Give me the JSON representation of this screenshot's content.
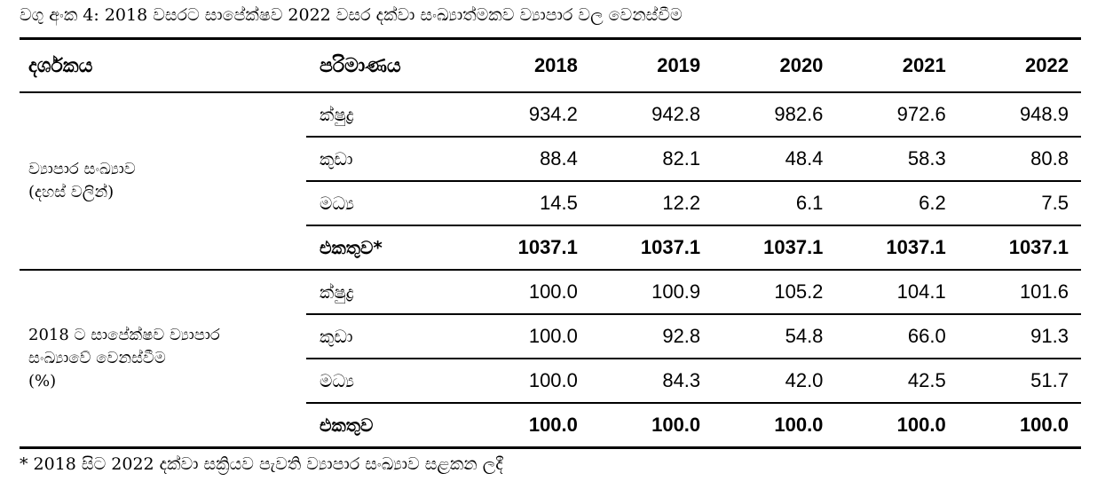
{
  "caption": "වගු අංක 4: 2018 වසරට සාපේක්ෂව 2022 වසර දක්වා සංඛ්‍යාත්මකව ව්‍යාපාර වල වෙනස්වීම",
  "table": {
    "headers": {
      "indicator": "දර්ශකය",
      "category": "පරිමාණය",
      "years": [
        "2018",
        "2019",
        "2020",
        "2021",
        "2022"
      ]
    },
    "groups": [
      {
        "label_lines": [
          "ව්‍යාපාර සංඛ්‍යාව",
          "(දහස් වලින්)"
        ],
        "rows": [
          {
            "category": "ක්ෂුද්‍ර",
            "values": [
              "934.2",
              "942.8",
              "982.6",
              "972.6",
              "948.9"
            ]
          },
          {
            "category": "කුඩා",
            "values": [
              "88.4",
              "82.1",
              "48.4",
              "58.3",
              "80.8"
            ]
          },
          {
            "category": "මධ්‍ය",
            "values": [
              "14.5",
              "12.2",
              "6.1",
              "6.2",
              "7.5"
            ]
          },
          {
            "category": "එකතුව*",
            "values": [
              "1037.1",
              "1037.1",
              "1037.1",
              "1037.1",
              "1037.1"
            ]
          }
        ]
      },
      {
        "label_lines": [
          "2018 ට සාපේක්ෂව ව්‍යාපාර",
          "සංඛ්‍යාවේ වෙනස්වීම",
          "(%)"
        ],
        "rows": [
          {
            "category": "ක්ෂුද්‍ර",
            "values": [
              "100.0",
              "100.9",
              "105.2",
              "104.1",
              "101.6"
            ]
          },
          {
            "category": "කුඩා",
            "values": [
              "100.0",
              "92.8",
              "54.8",
              "66.0",
              "91.3"
            ]
          },
          {
            "category": "මධ්‍ය",
            "values": [
              "100.0",
              "84.3",
              "42.0",
              "42.5",
              "51.7"
            ]
          },
          {
            "category": "එකතුව",
            "values": [
              "100.0",
              "100.0",
              "100.0",
              "100.0",
              "100.0"
            ]
          }
        ]
      }
    ]
  },
  "footnote": "* 2018 සිට 2022 දක්වා සක්‍රියව පැවති ව්‍යාපාර සංඛ්‍යාව සළකන ලදී"
}
